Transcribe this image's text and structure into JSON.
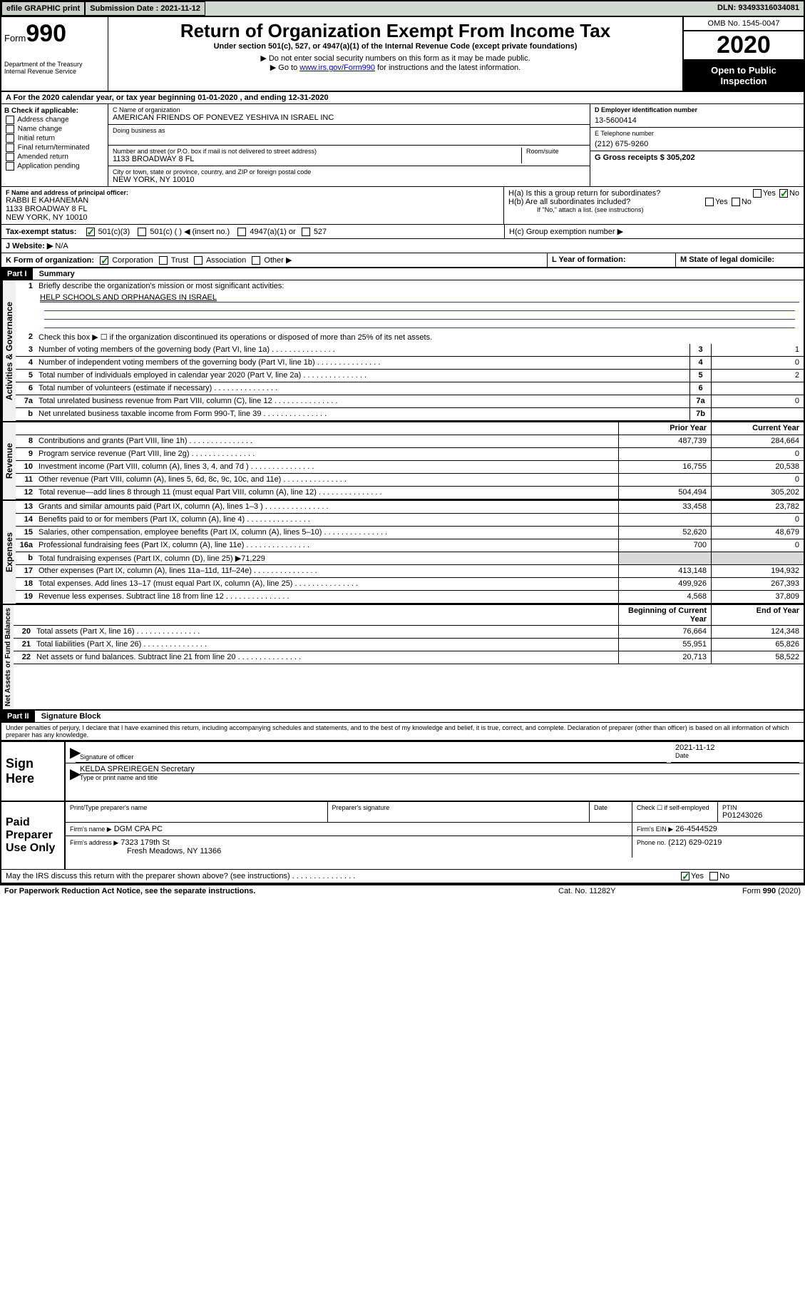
{
  "topbar": {
    "efile": "efile GRAPHIC print",
    "submission_label": "Submission Date : 2021-11-12",
    "dln": "DLN: 93493316034081"
  },
  "header": {
    "form_label": "Form",
    "form_num": "990",
    "dept": "Department of the Treasury",
    "irs": "Internal Revenue Service",
    "title": "Return of Organization Exempt From Income Tax",
    "subtitle": "Under section 501(c), 527, or 4947(a)(1) of the Internal Revenue Code (except private foundations)",
    "note1": "▶ Do not enter social security numbers on this form as it may be made public.",
    "note2_pre": "▶ Go to ",
    "note2_link": "www.irs.gov/Form990",
    "note2_post": " for instructions and the latest information.",
    "omb": "OMB No. 1545-0047",
    "year": "2020",
    "inspect": "Open to Public Inspection"
  },
  "rowA": "A For the 2020 calendar year, or tax year beginning 01-01-2020    , and ending 12-31-2020",
  "sectionB": {
    "label": "B Check if applicable:",
    "opts": [
      "Address change",
      "Name change",
      "Initial return",
      "Final return/terminated",
      "Amended return",
      "Application pending"
    ]
  },
  "sectionC": {
    "name_label": "C Name of organization",
    "name": "AMERICAN FRIENDS OF PONEVEZ YESHIVA IN ISRAEL INC",
    "dba_label": "Doing business as",
    "addr_label": "Number and street (or P.O. box if mail is not delivered to street address)",
    "room_label": "Room/suite",
    "addr": "1133 BROADWAY 8 FL",
    "city_label": "City or town, state or province, country, and ZIP or foreign postal code",
    "city": "NEW YORK, NY  10010"
  },
  "sectionD": {
    "label": "D Employer identification number",
    "val": "13-5600414"
  },
  "sectionE": {
    "label": "E Telephone number",
    "val": "(212) 675-9260"
  },
  "sectionG": {
    "label": "G Gross receipts $ 305,202"
  },
  "sectionF": {
    "label": "F Name and address of principal officer:",
    "name": "RABBI E KAHANEMAN",
    "addr1": "1133 BROADWAY 8 FL",
    "addr2": "NEW YORK, NY  10010"
  },
  "sectionH": {
    "a_label": "H(a)  Is this a group return for subordinates?",
    "b_label": "H(b)  Are all subordinates included?",
    "b_note": "If \"No,\" attach a list. (see instructions)",
    "c_label": "H(c)  Group exemption number ▶",
    "yes": "Yes",
    "no": "No"
  },
  "taxexempt": {
    "label": "Tax-exempt status:",
    "c3": "501(c)(3)",
    "c": "501(c) (  ) ◀ (insert no.)",
    "a1": "4947(a)(1) or",
    "s527": "527"
  },
  "website": {
    "label": "J    Website: ▶",
    "val": "N/A"
  },
  "rowK": {
    "label": "K Form of organization:",
    "corp": "Corporation",
    "trust": "Trust",
    "assoc": "Association",
    "other": "Other ▶"
  },
  "rowL": "L Year of formation:",
  "rowM": "M State of legal domicile:",
  "part1": {
    "header": "Part I",
    "title": "Summary",
    "vert1": "Activities & Governance",
    "vert2": "Revenue",
    "vert3": "Expenses",
    "vert4": "Net Assets or Fund Balances",
    "line1_label": "Briefly describe the organization's mission or most significant activities:",
    "line1_val": "HELP SCHOOLS AND ORPHANAGES IN ISRAEL",
    "line2": "Check this box ▶ ☐  if the organization discontinued its operations or disposed of more than 25% of its net assets.",
    "lines_gov": [
      {
        "n": "3",
        "d": "Number of voting members of the governing body (Part VI, line 1a)",
        "box": "3",
        "v": "1"
      },
      {
        "n": "4",
        "d": "Number of independent voting members of the governing body (Part VI, line 1b)",
        "box": "4",
        "v": "0"
      },
      {
        "n": "5",
        "d": "Total number of individuals employed in calendar year 2020 (Part V, line 2a)",
        "box": "5",
        "v": "2"
      },
      {
        "n": "6",
        "d": "Total number of volunteers (estimate if necessary)",
        "box": "6",
        "v": ""
      },
      {
        "n": "7a",
        "d": "Total unrelated business revenue from Part VIII, column (C), line 12",
        "box": "7a",
        "v": "0"
      },
      {
        "n": "b",
        "d": "Net unrelated business taxable income from Form 990-T, line 39",
        "box": "7b",
        "v": ""
      }
    ],
    "col_prior": "Prior Year",
    "col_current": "Current Year",
    "lines_rev": [
      {
        "n": "8",
        "d": "Contributions and grants (Part VIII, line 1h)",
        "p": "487,739",
        "c": "284,664"
      },
      {
        "n": "9",
        "d": "Program service revenue (Part VIII, line 2g)",
        "p": "",
        "c": "0"
      },
      {
        "n": "10",
        "d": "Investment income (Part VIII, column (A), lines 3, 4, and 7d )",
        "p": "16,755",
        "c": "20,538"
      },
      {
        "n": "11",
        "d": "Other revenue (Part VIII, column (A), lines 5, 6d, 8c, 9c, 10c, and 11e)",
        "p": "",
        "c": "0"
      },
      {
        "n": "12",
        "d": "Total revenue—add lines 8 through 11 (must equal Part VIII, column (A), line 12)",
        "p": "504,494",
        "c": "305,202"
      }
    ],
    "lines_exp": [
      {
        "n": "13",
        "d": "Grants and similar amounts paid (Part IX, column (A), lines 1–3 )",
        "p": "33,458",
        "c": "23,782"
      },
      {
        "n": "14",
        "d": "Benefits paid to or for members (Part IX, column (A), line 4)",
        "p": "",
        "c": "0"
      },
      {
        "n": "15",
        "d": "Salaries, other compensation, employee benefits (Part IX, column (A), lines 5–10)",
        "p": "52,620",
        "c": "48,679"
      },
      {
        "n": "16a",
        "d": "Professional fundraising fees (Part IX, column (A), line 11e)",
        "p": "700",
        "c": "0"
      },
      {
        "n": "b",
        "d": "Total fundraising expenses (Part IX, column (D), line 25) ▶71,229",
        "p": "",
        "c": "",
        "shaded": true
      },
      {
        "n": "17",
        "d": "Other expenses (Part IX, column (A), lines 11a–11d, 11f–24e)",
        "p": "413,148",
        "c": "194,932"
      },
      {
        "n": "18",
        "d": "Total expenses. Add lines 13–17 (must equal Part IX, column (A), line 25)",
        "p": "499,926",
        "c": "267,393"
      },
      {
        "n": "19",
        "d": "Revenue less expenses. Subtract line 18 from line 12",
        "p": "4,568",
        "c": "37,809"
      }
    ],
    "col_begin": "Beginning of Current Year",
    "col_end": "End of Year",
    "lines_net": [
      {
        "n": "20",
        "d": "Total assets (Part X, line 16)",
        "p": "76,664",
        "c": "124,348"
      },
      {
        "n": "21",
        "d": "Total liabilities (Part X, line 26)",
        "p": "55,951",
        "c": "65,826"
      },
      {
        "n": "22",
        "d": "Net assets or fund balances. Subtract line 21 from line 20",
        "p": "20,713",
        "c": "58,522"
      }
    ]
  },
  "part2": {
    "header": "Part II",
    "title": "Signature Block",
    "declaration": "Under penalties of perjury, I declare that I have examined this return, including accompanying schedules and statements, and to the best of my knowledge and belief, it is true, correct, and complete. Declaration of preparer (other than officer) is based on all information of which preparer has any knowledge."
  },
  "sign": {
    "label": "Sign Here",
    "sig_label": "Signature of officer",
    "date_label": "Date",
    "date_val": "2021-11-12",
    "name": "KELDA SPREIREGEN  Secretary",
    "name_label": "Type or print name and title"
  },
  "prep": {
    "label": "Paid Preparer Use Only",
    "ptname_label": "Print/Type preparer's name",
    "psig_label": "Preparer's signature",
    "pdate_label": "Date",
    "check_label": "Check ☐ if self-employed",
    "ptin_label": "PTIN",
    "ptin": "P01243026",
    "firm_name_label": "Firm's name   ▶",
    "firm_name": "DGM CPA PC",
    "firm_ein_label": "Firm's EIN ▶",
    "firm_ein": "26-4544529",
    "firm_addr_label": "Firm's address ▶",
    "firm_addr1": "7323 179th St",
    "firm_addr2": "Fresh Meadows, NY  11366",
    "phone_label": "Phone no.",
    "phone": "(212) 629-0219",
    "discuss": "May the IRS discuss this return with the preparer shown above? (see instructions)"
  },
  "footer": {
    "paperwork": "For Paperwork Reduction Act Notice, see the separate instructions.",
    "cat": "Cat. No. 11282Y",
    "form": "Form 990 (2020)"
  }
}
